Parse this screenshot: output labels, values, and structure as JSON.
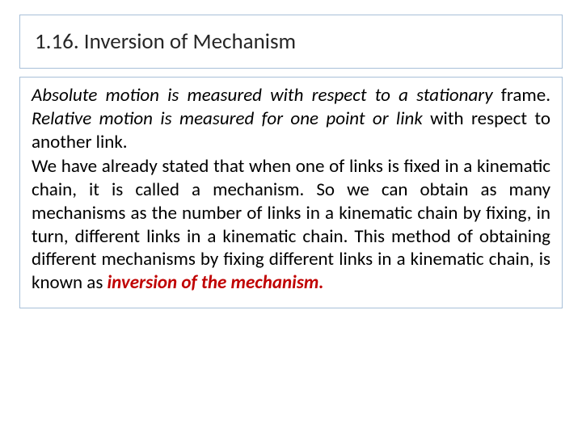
{
  "title": "1.16. Inversion of Mechanism",
  "para1_seg1": "Absolute motion is measured with respect to a stationary",
  "para1_seg2": " frame. ",
  "para1_seg3": "Relative motion is measured for one point or link",
  "para1_seg4": " with respect to another link.",
  "para2_seg1": "We have already stated that when one of links is fixed in a kinematic chain, it is called a mechanism. So we can obtain as many mechanisms as the number of links in a kinematic chain by fixing, in turn, different links in a kinematic chain. This method of obtaining different mechanisms by fixing different links in a kinematic chain, is known as ",
  "para2_highlight": "inversion of the mechanism.",
  "colors": {
    "border": "#a8c0d8",
    "text": "#000000",
    "title": "#262626",
    "highlight": "#c00000",
    "background": "#ffffff"
  },
  "fonts": {
    "title_size": 27,
    "body_size": 23,
    "family": "Calibri"
  }
}
